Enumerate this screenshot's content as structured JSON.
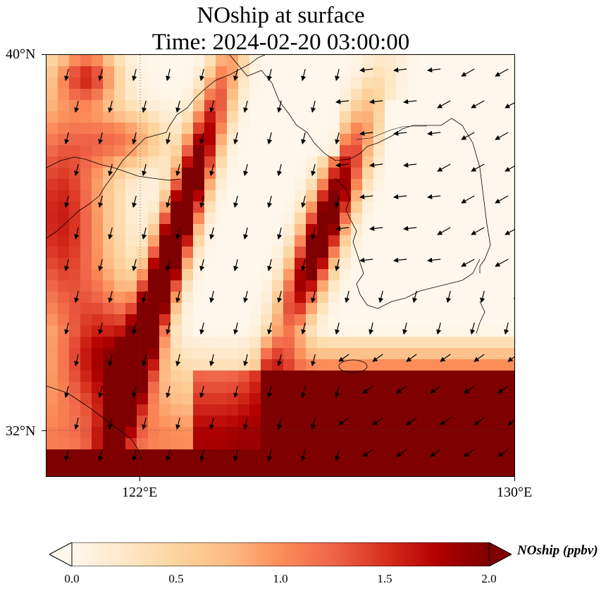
{
  "title": {
    "line1": "NOship at surface",
    "line2": "Time: 2024-02-20 03:00:00"
  },
  "axes": {
    "lat_labels": [
      "40°N",
      "32°N"
    ],
    "lon_labels": [
      "122°E",
      "130°E"
    ],
    "lat_range": [
      31,
      40
    ],
    "lon_range": [
      120,
      130
    ]
  },
  "colorbar": {
    "label": "NOship (ppbv)",
    "ticks": [
      "0.0",
      "0.5",
      "1.0",
      "1.5",
      "2.0"
    ],
    "range": [
      0,
      2
    ],
    "extend": "both",
    "cmap": [
      "#fff7ec",
      "#fee8c8",
      "#fdd49e",
      "#fdbb84",
      "#fc8d59",
      "#ef6548",
      "#d7301f",
      "#b30000",
      "#7f0000"
    ]
  },
  "gridlines": "dotted",
  "layers": [
    "NOship concentration field",
    "wind vectors",
    "coastlines"
  ]
}
